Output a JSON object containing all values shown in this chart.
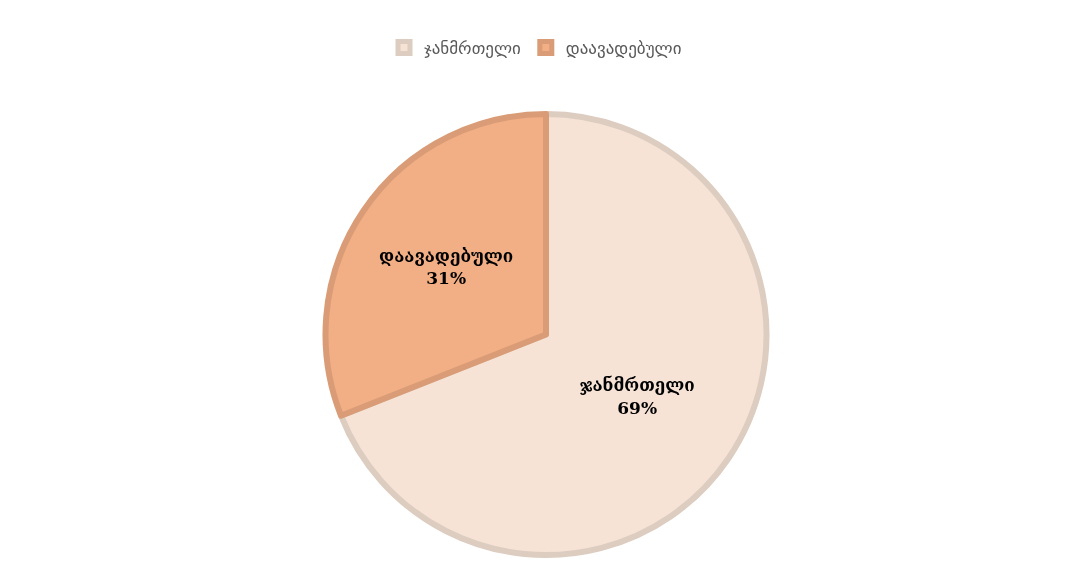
{
  "chart_data": {
    "type": "pie",
    "categories": [
      "ჯანმრთელი",
      "დაავადებული"
    ],
    "values": [
      69,
      31
    ],
    "colors": [
      "#f6e3d6",
      "#f2ae84"
    ],
    "value_labels": [
      "69%",
      "31%"
    ],
    "legend": "top"
  }
}
